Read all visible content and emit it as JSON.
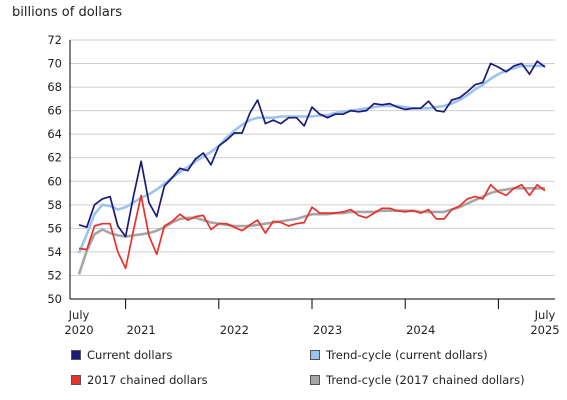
{
  "chart_data": {
    "type": "line",
    "y_unit_label": "billions of dollars",
    "ylim": [
      50,
      72
    ],
    "yticks": [
      50,
      52,
      54,
      56,
      58,
      60,
      62,
      64,
      66,
      68,
      70,
      72
    ],
    "xlim": [
      "2020-07",
      "2025-07"
    ],
    "x_tick_labels": [
      {
        "at": "2020-07",
        "lines": [
          "July",
          "2020"
        ]
      },
      {
        "at": "2021-03",
        "lines": [
          "2021"
        ]
      },
      {
        "at": "2022-03",
        "lines": [
          "2022"
        ]
      },
      {
        "at": "2023-03",
        "lines": [
          "2023"
        ]
      },
      {
        "at": "2024-03",
        "lines": [
          "2024"
        ]
      },
      {
        "at": "2025-07",
        "lines": [
          "July",
          "2025"
        ]
      }
    ],
    "gridlines": "horizontal",
    "legend_position": "bottom",
    "x": [
      "2020-07",
      "2020-08",
      "2020-09",
      "2020-10",
      "2020-11",
      "2020-12",
      "2021-01",
      "2021-02",
      "2021-03",
      "2021-04",
      "2021-05",
      "2021-06",
      "2021-07",
      "2021-08",
      "2021-09",
      "2021-10",
      "2021-11",
      "2021-12",
      "2022-01",
      "2022-02",
      "2022-03",
      "2022-04",
      "2022-05",
      "2022-06",
      "2022-07",
      "2022-08",
      "2022-09",
      "2022-10",
      "2022-11",
      "2022-12",
      "2023-01",
      "2023-02",
      "2023-03",
      "2023-04",
      "2023-05",
      "2023-06",
      "2023-07",
      "2023-08",
      "2023-09",
      "2023-10",
      "2023-11",
      "2023-12",
      "2024-01",
      "2024-02",
      "2024-03",
      "2024-04",
      "2024-05",
      "2024-06",
      "2024-07",
      "2024-08",
      "2024-09",
      "2024-10",
      "2024-11",
      "2024-12",
      "2025-01",
      "2025-02",
      "2025-03",
      "2025-04",
      "2025-05",
      "2025-06",
      "2025-07"
    ],
    "series": [
      {
        "name": "Current dollars",
        "color": "#1a1a7a",
        "style": "dark",
        "values": [
          56.3,
          56.1,
          58.0,
          58.5,
          58.7,
          56.2,
          55.3,
          58.7,
          61.7,
          58.2,
          57.0,
          59.6,
          60.3,
          61.1,
          60.9,
          61.9,
          62.4,
          61.4,
          63.0,
          63.5,
          64.1,
          64.1,
          65.8,
          66.9,
          64.9,
          65.2,
          64.9,
          65.4,
          65.4,
          64.7,
          66.3,
          65.7,
          65.4,
          65.7,
          65.7,
          66.0,
          65.9,
          66.0,
          66.6,
          66.5,
          66.6,
          66.3,
          66.1,
          66.2,
          66.2,
          66.8,
          66.0,
          65.9,
          66.9,
          67.1,
          67.6,
          68.2,
          68.4,
          70.0,
          69.7,
          69.3,
          69.8,
          70.0,
          69.1,
          70.2,
          69.7
        ]
      },
      {
        "name": "Trend-cycle (current dollars)",
        "color": "#9cc3ef",
        "style": "light",
        "values": [
          53.9,
          55.5,
          57.2,
          58.0,
          57.9,
          57.6,
          57.8,
          58.2,
          58.6,
          58.9,
          59.3,
          59.8,
          60.3,
          60.8,
          61.2,
          61.7,
          62.1,
          62.5,
          63.0,
          63.7,
          64.3,
          64.8,
          65.2,
          65.4,
          65.4,
          65.4,
          65.5,
          65.5,
          65.5,
          65.5,
          65.5,
          65.6,
          65.6,
          65.8,
          65.9,
          66.0,
          66.1,
          66.2,
          66.3,
          66.4,
          66.4,
          66.4,
          66.3,
          66.2,
          66.2,
          66.2,
          66.3,
          66.4,
          66.6,
          66.9,
          67.3,
          67.8,
          68.2,
          68.7,
          69.1,
          69.4,
          69.6,
          69.8,
          69.8,
          69.8,
          69.8
        ]
      },
      {
        "name": "2017 chained dollars",
        "color": "#e8312b",
        "style": "dark",
        "values": [
          54.3,
          54.2,
          56.2,
          56.4,
          56.4,
          54.0,
          52.6,
          55.8,
          58.8,
          55.4,
          53.8,
          56.2,
          56.6,
          57.2,
          56.7,
          57.0,
          57.1,
          55.9,
          56.4,
          56.4,
          56.1,
          55.8,
          56.3,
          56.7,
          55.6,
          56.6,
          56.5,
          56.2,
          56.4,
          56.5,
          57.8,
          57.3,
          57.3,
          57.3,
          57.4,
          57.6,
          57.1,
          56.9,
          57.3,
          57.7,
          57.7,
          57.5,
          57.4,
          57.5,
          57.3,
          57.6,
          56.8,
          56.8,
          57.6,
          57.9,
          58.5,
          58.7,
          58.5,
          59.7,
          59.1,
          58.8,
          59.4,
          59.7,
          58.8,
          59.7,
          59.2
        ]
      },
      {
        "name": "Trend-cycle (2017 chained dollars)",
        "color": "#a6a6a6",
        "style": "light",
        "values": [
          52.1,
          54.1,
          55.5,
          55.9,
          55.6,
          55.4,
          55.3,
          55.4,
          55.5,
          55.6,
          55.8,
          56.1,
          56.5,
          56.8,
          56.9,
          56.9,
          56.7,
          56.5,
          56.4,
          56.3,
          56.2,
          56.2,
          56.2,
          56.3,
          56.4,
          56.5,
          56.6,
          56.7,
          56.8,
          57.0,
          57.2,
          57.2,
          57.2,
          57.3,
          57.3,
          57.4,
          57.4,
          57.4,
          57.4,
          57.5,
          57.5,
          57.5,
          57.5,
          57.5,
          57.4,
          57.4,
          57.4,
          57.4,
          57.6,
          57.8,
          58.1,
          58.4,
          58.7,
          59.0,
          59.2,
          59.3,
          59.4,
          59.4,
          59.4,
          59.4,
          59.4
        ]
      }
    ]
  }
}
